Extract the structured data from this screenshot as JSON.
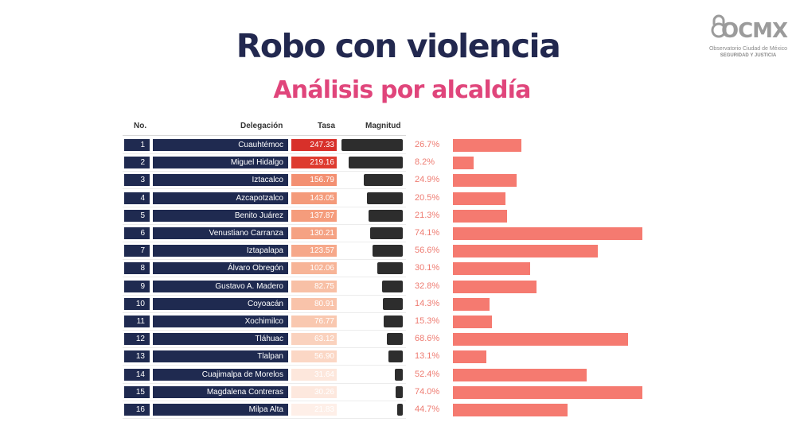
{
  "title": "Robo con violencia",
  "subtitle": "Análisis por alcaldía",
  "logo": {
    "brand": "OCMX",
    "line1": "Observatorio Ciudad de México",
    "line2": "SEGURIDAD Y JUSTICIA"
  },
  "headers": {
    "no": "No.",
    "delegacion": "Delegación",
    "tasa": "Tasa",
    "magnitud": "Magnitud"
  },
  "chart_data": {
    "type": "table",
    "columns": [
      "No.",
      "Delegación",
      "Tasa",
      "Magnitud",
      "%"
    ],
    "rows": [
      {
        "no": "1",
        "name": "Cuauhtémoc",
        "tasa": "247.33",
        "value": 247.33,
        "pct_label": "26.7%",
        "pct": 26.7,
        "color": "#d8302a"
      },
      {
        "no": "2",
        "name": "Miguel Hidalgo",
        "tasa": "219.16",
        "value": 219.16,
        "pct_label": "8.2%",
        "pct": 8.2,
        "color": "#de3b2f"
      },
      {
        "no": "3",
        "name": "Iztacalco",
        "tasa": "156.79",
        "value": 156.79,
        "pct_label": "24.9%",
        "pct": 24.9,
        "color": "#f39072"
      },
      {
        "no": "4",
        "name": "Azcapotzalco",
        "tasa": "143.05",
        "value": 143.05,
        "pct_label": "20.5%",
        "pct": 20.5,
        "color": "#f49a7a"
      },
      {
        "no": "5",
        "name": "Benito Juárez",
        "tasa": "137.87",
        "value": 137.87,
        "pct_label": "21.3%",
        "pct": 21.3,
        "color": "#f59c7c"
      },
      {
        "no": "6",
        "name": "Venustiano Carranza",
        "tasa": "130.21",
        "value": 130.21,
        "pct_label": "74.1%",
        "pct": 74.1,
        "color": "#f5a283"
      },
      {
        "no": "7",
        "name": "Iztapalapa",
        "tasa": "123.57",
        "value": 123.57,
        "pct_label": "56.6%",
        "pct": 56.6,
        "color": "#f6a88a"
      },
      {
        "no": "8",
        "name": "Álvaro Obregón",
        "tasa": "102.06",
        "value": 102.06,
        "pct_label": "30.1%",
        "pct": 30.1,
        "color": "#f7b497"
      },
      {
        "no": "9",
        "name": "Gustavo A. Madero",
        "tasa": "82.75",
        "value": 82.75,
        "pct_label": "32.8%",
        "pct": 32.8,
        "color": "#f8c0a6"
      },
      {
        "no": "10",
        "name": "Coyoacán",
        "tasa": "80.91",
        "value": 80.91,
        "pct_label": "14.3%",
        "pct": 14.3,
        "color": "#f9c3aa"
      },
      {
        "no": "11",
        "name": "Xochimilco",
        "tasa": "76.77",
        "value": 76.77,
        "pct_label": "15.3%",
        "pct": 15.3,
        "color": "#f9c8b0"
      },
      {
        "no": "12",
        "name": "Tláhuac",
        "tasa": "63.12",
        "value": 63.12,
        "pct_label": "68.6%",
        "pct": 68.6,
        "color": "#fad2be"
      },
      {
        "no": "13",
        "name": "Tlalpan",
        "tasa": "56.90",
        "value": 56.9,
        "pct_label": "13.1%",
        "pct": 13.1,
        "color": "#fbd7c5"
      },
      {
        "no": "14",
        "name": "Cuajimalpa de Morelos",
        "tasa": "31.64",
        "value": 31.64,
        "pct_label": "52.4%",
        "pct": 52.4,
        "color": "#fde7dc"
      },
      {
        "no": "15",
        "name": "Magdalena Contreras",
        "tasa": "30.26",
        "value": 30.26,
        "pct_label": "74.0%",
        "pct": 74.0,
        "color": "#fde8de"
      },
      {
        "no": "16",
        "name": "Milpa Alta",
        "tasa": "21.83",
        "value": 21.83,
        "pct_label": "44.7%",
        "pct": 44.7,
        "color": "#feefe8"
      }
    ]
  }
}
